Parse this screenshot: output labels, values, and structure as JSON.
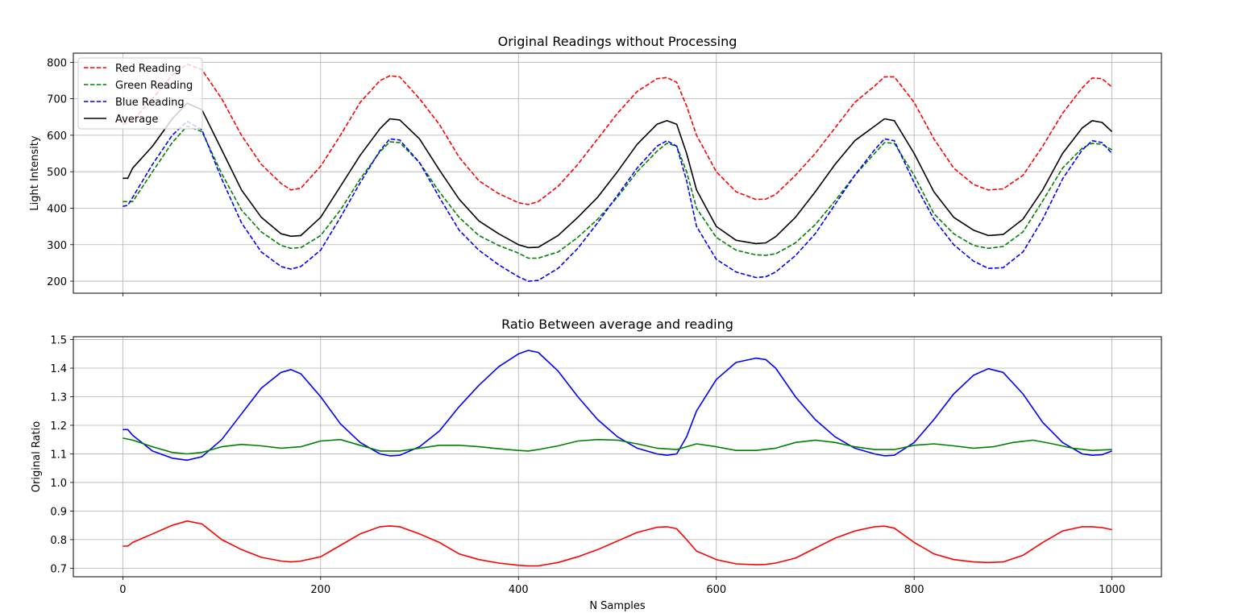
{
  "chart_data": [
    {
      "type": "line",
      "title": "Original Readings without Processing",
      "xlabel": "",
      "ylabel": "Light Intensity",
      "xlim": [
        -50,
        1050
      ],
      "ylim": [
        167,
        825
      ],
      "xticks": [
        0,
        200,
        400,
        600,
        800,
        1000
      ],
      "xtick_labels_visible": false,
      "yticks": [
        200,
        300,
        400,
        500,
        600,
        700,
        800
      ],
      "ytick_labels": [
        "200",
        "300",
        "400",
        "500",
        "600",
        "700",
        "800"
      ],
      "grid": true,
      "legend_position": "upper-left",
      "series": [
        {
          "name": "Red Reading",
          "color": "#ff0000",
          "style": "dashed",
          "x": [
            0,
            10,
            30,
            50,
            65,
            80,
            100,
            120,
            140,
            160,
            170,
            180,
            200,
            220,
            240,
            260,
            270,
            280,
            300,
            320,
            340,
            360,
            380,
            400,
            410,
            420,
            440,
            460,
            480,
            500,
            520,
            540,
            550,
            560,
            570,
            580,
            600,
            620,
            640,
            650,
            660,
            680,
            700,
            720,
            740,
            760,
            770,
            780,
            800,
            820,
            840,
            860,
            875,
            890,
            910,
            930,
            950,
            970,
            980,
            990,
            1000
          ],
          "y": [
            630,
            640,
            700,
            765,
            795,
            780,
            700,
            600,
            520,
            468,
            450,
            455,
            515,
            600,
            690,
            750,
            763,
            760,
            700,
            630,
            540,
            475,
            440,
            415,
            410,
            418,
            460,
            520,
            590,
            660,
            720,
            755,
            758,
            745,
            680,
            600,
            500,
            445,
            424,
            425,
            438,
            490,
            550,
            620,
            690,
            735,
            760,
            760,
            690,
            590,
            510,
            465,
            450,
            453,
            490,
            570,
            660,
            730,
            757,
            755,
            732
          ]
        },
        {
          "name": "Green Reading",
          "color": "#008000",
          "style": "dashed",
          "x": [
            0,
            10,
            30,
            50,
            65,
            80,
            100,
            120,
            140,
            160,
            170,
            180,
            200,
            220,
            240,
            260,
            270,
            280,
            300,
            320,
            340,
            360,
            380,
            400,
            410,
            420,
            440,
            460,
            480,
            500,
            520,
            540,
            550,
            560,
            570,
            580,
            600,
            620,
            640,
            650,
            660,
            680,
            700,
            720,
            740,
            760,
            770,
            780,
            800,
            820,
            840,
            860,
            875,
            890,
            910,
            930,
            950,
            970,
            980,
            990,
            1000
          ],
          "y": [
            418,
            418,
            500,
            580,
            625,
            610,
            495,
            395,
            335,
            298,
            290,
            292,
            325,
            395,
            480,
            555,
            582,
            580,
            525,
            445,
            375,
            325,
            298,
            277,
            263,
            263,
            280,
            320,
            370,
            430,
            500,
            556,
            578,
            570,
            500,
            400,
            320,
            285,
            272,
            271,
            275,
            305,
            355,
            420,
            490,
            550,
            580,
            578,
            490,
            385,
            330,
            298,
            290,
            295,
            335,
            420,
            510,
            565,
            578,
            575,
            560
          ]
        },
        {
          "name": "Blue Reading",
          "color": "#0000ff",
          "style": "dashed",
          "x": [
            0,
            5,
            10,
            30,
            50,
            65,
            80,
            100,
            120,
            140,
            160,
            170,
            180,
            200,
            220,
            240,
            260,
            270,
            280,
            300,
            320,
            340,
            360,
            380,
            400,
            410,
            420,
            440,
            460,
            480,
            500,
            520,
            540,
            550,
            560,
            570,
            580,
            600,
            620,
            640,
            650,
            660,
            680,
            700,
            720,
            740,
            760,
            770,
            780,
            800,
            820,
            840,
            860,
            875,
            890,
            910,
            930,
            950,
            970,
            980,
            990,
            1000
          ],
          "y": [
            405,
            408,
            430,
            520,
            600,
            638,
            615,
            480,
            360,
            280,
            240,
            233,
            240,
            285,
            375,
            470,
            558,
            590,
            587,
            525,
            430,
            340,
            285,
            245,
            212,
            200,
            202,
            235,
            290,
            360,
            435,
            510,
            570,
            585,
            570,
            475,
            350,
            260,
            225,
            210,
            212,
            225,
            270,
            330,
            410,
            490,
            560,
            590,
            585,
            470,
            370,
            300,
            255,
            235,
            237,
            280,
            370,
            480,
            560,
            585,
            580,
            550
          ]
        },
        {
          "name": "Average",
          "color": "#000000",
          "style": "solid",
          "x": [
            0,
            5,
            10,
            30,
            50,
            65,
            80,
            100,
            120,
            140,
            160,
            170,
            180,
            200,
            220,
            240,
            260,
            270,
            280,
            300,
            320,
            340,
            360,
            380,
            400,
            410,
            420,
            440,
            460,
            480,
            500,
            520,
            540,
            550,
            560,
            570,
            580,
            600,
            620,
            640,
            650,
            660,
            680,
            700,
            720,
            740,
            760,
            770,
            780,
            800,
            820,
            840,
            860,
            875,
            890,
            910,
            930,
            950,
            970,
            980,
            990,
            1000
          ],
          "y": [
            482,
            482,
            510,
            570,
            645,
            688,
            670,
            560,
            450,
            375,
            330,
            323,
            325,
            375,
            460,
            545,
            618,
            645,
            642,
            590,
            505,
            425,
            365,
            330,
            300,
            292,
            293,
            325,
            375,
            430,
            500,
            575,
            630,
            640,
            630,
            550,
            450,
            350,
            312,
            303,
            305,
            322,
            375,
            445,
            520,
            585,
            625,
            645,
            640,
            550,
            445,
            375,
            340,
            325,
            328,
            370,
            450,
            550,
            620,
            640,
            635,
            610
          ]
        }
      ]
    },
    {
      "type": "line",
      "title": "Ratio Between average and reading",
      "xlabel": "N Samples",
      "ylabel": "Original Ratio",
      "xlim": [
        -50,
        1050
      ],
      "ylim": [
        0.67,
        1.51
      ],
      "xticks": [
        0,
        200,
        400,
        600,
        800,
        1000
      ],
      "xtick_labels": [
        "0",
        "200",
        "400",
        "600",
        "800",
        "1000"
      ],
      "yticks": [
        0.7,
        0.8,
        0.9,
        1.0,
        1.1,
        1.2,
        1.3,
        1.4,
        1.5
      ],
      "ytick_labels": [
        "0.7",
        "0.8",
        "0.9",
        "1.0",
        "1.1",
        "1.2",
        "1.3",
        "1.4",
        "1.5"
      ],
      "grid": true,
      "series": [
        {
          "color": "#0000ff",
          "style": "solid",
          "x": [
            0,
            5,
            10,
            30,
            50,
            65,
            80,
            100,
            120,
            140,
            160,
            170,
            180,
            200,
            220,
            240,
            260,
            270,
            280,
            300,
            320,
            340,
            360,
            380,
            400,
            410,
            420,
            440,
            460,
            480,
            500,
            520,
            540,
            550,
            560,
            570,
            580,
            600,
            620,
            640,
            650,
            660,
            680,
            700,
            720,
            740,
            760,
            770,
            780,
            800,
            820,
            840,
            860,
            875,
            890,
            910,
            930,
            950,
            970,
            980,
            990,
            1000
          ],
          "y": [
            1.185,
            1.185,
            1.165,
            1.11,
            1.085,
            1.078,
            1.09,
            1.15,
            1.24,
            1.33,
            1.385,
            1.395,
            1.38,
            1.3,
            1.205,
            1.14,
            1.1,
            1.093,
            1.095,
            1.125,
            1.18,
            1.265,
            1.34,
            1.405,
            1.45,
            1.462,
            1.455,
            1.39,
            1.3,
            1.22,
            1.16,
            1.12,
            1.1,
            1.095,
            1.1,
            1.16,
            1.25,
            1.36,
            1.42,
            1.435,
            1.43,
            1.4,
            1.3,
            1.22,
            1.16,
            1.12,
            1.1,
            1.093,
            1.095,
            1.14,
            1.22,
            1.31,
            1.375,
            1.398,
            1.385,
            1.31,
            1.21,
            1.14,
            1.1,
            1.095,
            1.097,
            1.11
          ]
        },
        {
          "color": "#008000",
          "style": "solid",
          "x": [
            0,
            10,
            30,
            50,
            65,
            80,
            100,
            120,
            140,
            160,
            180,
            200,
            220,
            240,
            260,
            280,
            300,
            320,
            340,
            360,
            380,
            400,
            410,
            420,
            440,
            460,
            480,
            500,
            520,
            540,
            560,
            580,
            600,
            620,
            640,
            660,
            680,
            700,
            720,
            740,
            760,
            780,
            800,
            820,
            840,
            860,
            880,
            900,
            920,
            940,
            960,
            980,
            1000
          ],
          "y": [
            1.155,
            1.148,
            1.125,
            1.105,
            1.1,
            1.105,
            1.125,
            1.133,
            1.128,
            1.12,
            1.125,
            1.145,
            1.15,
            1.13,
            1.11,
            1.11,
            1.12,
            1.13,
            1.13,
            1.125,
            1.118,
            1.112,
            1.11,
            1.115,
            1.128,
            1.145,
            1.15,
            1.148,
            1.135,
            1.12,
            1.115,
            1.135,
            1.125,
            1.112,
            1.112,
            1.12,
            1.14,
            1.148,
            1.14,
            1.125,
            1.115,
            1.115,
            1.13,
            1.135,
            1.128,
            1.12,
            1.125,
            1.14,
            1.148,
            1.135,
            1.12,
            1.112,
            1.115
          ]
        },
        {
          "color": "#ff0000",
          "style": "solid",
          "x": [
            0,
            5,
            10,
            30,
            50,
            65,
            80,
            100,
            120,
            140,
            160,
            170,
            180,
            200,
            220,
            240,
            260,
            270,
            280,
            300,
            320,
            340,
            360,
            380,
            400,
            410,
            420,
            440,
            460,
            480,
            500,
            520,
            540,
            550,
            560,
            570,
            580,
            600,
            620,
            640,
            650,
            660,
            680,
            700,
            720,
            740,
            760,
            770,
            780,
            800,
            820,
            840,
            860,
            875,
            890,
            910,
            930,
            950,
            970,
            980,
            990,
            1000
          ],
          "y": [
            0.777,
            0.777,
            0.79,
            0.82,
            0.85,
            0.865,
            0.855,
            0.8,
            0.765,
            0.738,
            0.725,
            0.722,
            0.725,
            0.74,
            0.78,
            0.82,
            0.845,
            0.848,
            0.845,
            0.82,
            0.79,
            0.75,
            0.73,
            0.718,
            0.71,
            0.708,
            0.708,
            0.72,
            0.74,
            0.765,
            0.795,
            0.825,
            0.843,
            0.845,
            0.838,
            0.8,
            0.76,
            0.73,
            0.715,
            0.712,
            0.713,
            0.718,
            0.735,
            0.77,
            0.805,
            0.83,
            0.845,
            0.847,
            0.84,
            0.79,
            0.75,
            0.73,
            0.722,
            0.72,
            0.722,
            0.745,
            0.79,
            0.83,
            0.845,
            0.845,
            0.842,
            0.835
          ]
        }
      ]
    }
  ]
}
